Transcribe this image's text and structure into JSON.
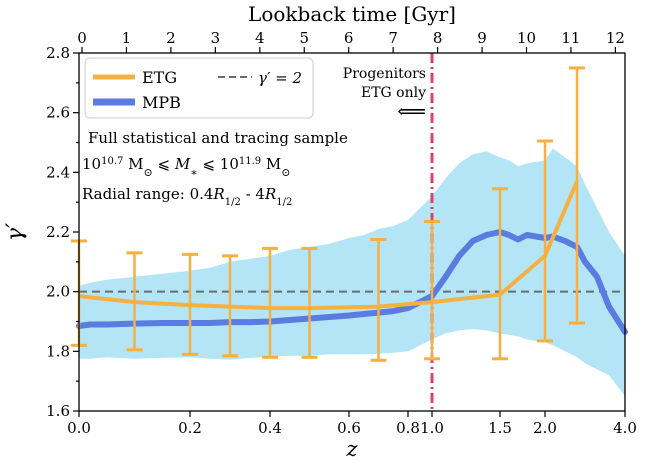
{
  "chart_data": {
    "type": "line",
    "title": "",
    "xlabel": "z",
    "ylabel": "γ′",
    "top_xlabel": "Lookback time [Gyr]",
    "ylim": [
      1.6,
      2.8
    ],
    "x_scale": "piecewise (non-linear redshift axis)",
    "x_ticks": [
      {
        "label": "0.0",
        "z": 0.0
      },
      {
        "label": "0.2",
        "z": 0.2
      },
      {
        "label": "0.4",
        "z": 0.4
      },
      {
        "label": "0.6",
        "z": 0.6
      },
      {
        "label": "0.8",
        "z": 0.8
      },
      {
        "label": "1.0",
        "z": 1.0
      },
      {
        "label": "1.5",
        "z": 1.5
      },
      {
        "label": "2.0",
        "z": 2.0
      },
      {
        "label": "4.0",
        "z": 4.0
      }
    ],
    "top_ticks": [
      "0",
      "1",
      "2",
      "3",
      "4",
      "5",
      "6",
      "7",
      "8",
      "9",
      "10",
      "11",
      "12"
    ],
    "y_ticks": [
      "1.6",
      "1.8",
      "2.0",
      "2.2",
      "2.4",
      "2.6",
      "2.8"
    ],
    "reference_line": {
      "y": 2.0,
      "label": "γ′ = 2",
      "color": "#6b6b6b"
    },
    "vertical_line": {
      "z": 1.0,
      "color": "#e0406a"
    },
    "annotation_lines": [
      "Progenitors",
      "ETG only"
    ],
    "annotation_arrow": "⟸",
    "text_block": [
      "Full statistical and tracing sample",
      "10^10.7 M⊙ ⩽ M∗ ⩽ 10^11.9 M⊙",
      "Radial range: 0.4R1/2 - 4R1/2"
    ],
    "legend": {
      "position": "top-left",
      "entries": [
        "ETG",
        "MPB"
      ]
    },
    "series": [
      {
        "name": "ETG",
        "color": "#f5b041",
        "x": [
          0.0,
          0.1,
          0.2,
          0.3,
          0.4,
          0.5,
          0.7,
          1.0,
          1.5,
          2.0,
          2.8
        ],
        "y": [
          1.985,
          1.965,
          1.955,
          1.95,
          1.945,
          1.945,
          1.95,
          1.965,
          1.99,
          2.12,
          2.37
        ],
        "err_low": [
          1.82,
          1.805,
          1.79,
          1.785,
          1.78,
          1.78,
          1.77,
          1.775,
          1.775,
          1.835,
          1.895
        ],
        "err_high": [
          2.17,
          2.13,
          2.125,
          2.12,
          2.145,
          2.145,
          2.175,
          2.235,
          2.345,
          2.505,
          2.75
        ]
      },
      {
        "name": "MPB",
        "color": "#5a7be0",
        "band_color": "#b3e5f7",
        "x": [
          0.0,
          0.02,
          0.05,
          0.1,
          0.15,
          0.2,
          0.25,
          0.3,
          0.35,
          0.4,
          0.45,
          0.5,
          0.55,
          0.6,
          0.65,
          0.7,
          0.75,
          0.8,
          0.85,
          0.9,
          0.95,
          1.0,
          1.1,
          1.2,
          1.3,
          1.4,
          1.5,
          1.6,
          1.7,
          1.8,
          2.0,
          2.2,
          2.5,
          2.8,
          3.0,
          3.3,
          3.6,
          4.0
        ],
        "y": [
          1.885,
          1.89,
          1.89,
          1.893,
          1.895,
          1.895,
          1.895,
          1.898,
          1.898,
          1.9,
          1.905,
          1.91,
          1.915,
          1.92,
          1.925,
          1.93,
          1.935,
          1.945,
          1.955,
          1.965,
          1.975,
          1.985,
          2.05,
          2.12,
          2.17,
          2.19,
          2.2,
          2.19,
          2.175,
          2.19,
          2.18,
          2.185,
          2.17,
          2.15,
          2.1,
          2.05,
          1.95,
          1.865
        ],
        "band_low": [
          1.775,
          1.775,
          1.78,
          1.775,
          1.778,
          1.78,
          1.775,
          1.772,
          1.778,
          1.782,
          1.785,
          1.785,
          1.79,
          1.79,
          1.79,
          1.792,
          1.795,
          1.8,
          1.81,
          1.82,
          1.83,
          1.84,
          1.86,
          1.87,
          1.875,
          1.87,
          1.86,
          1.855,
          1.85,
          1.84,
          1.83,
          1.82,
          1.8,
          1.78,
          1.76,
          1.74,
          1.72,
          1.65
        ],
        "band_high": [
          2.02,
          2.03,
          2.04,
          2.05,
          2.06,
          2.07,
          2.08,
          2.1,
          2.11,
          2.12,
          2.14,
          2.15,
          2.16,
          2.18,
          2.19,
          2.21,
          2.22,
          2.24,
          2.26,
          2.28,
          2.3,
          2.32,
          2.38,
          2.43,
          2.46,
          2.47,
          2.45,
          2.44,
          2.42,
          2.43,
          2.44,
          2.48,
          2.45,
          2.42,
          2.36,
          2.28,
          2.2,
          2.12
        ]
      }
    ]
  }
}
